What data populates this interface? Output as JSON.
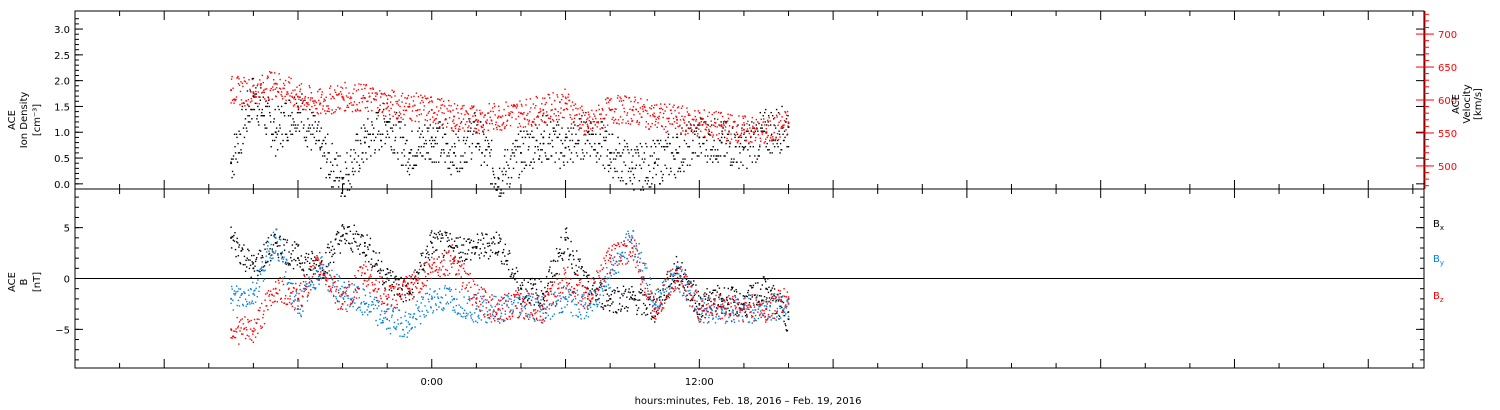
{
  "chart_data": [
    {
      "type": "scatter",
      "panel": "top",
      "ylabel_left": [
        "ACE",
        "Ion Density",
        "[cm⁻³]"
      ],
      "ylabel_right": [
        "ACE",
        "Velocity",
        "[km/s]"
      ],
      "ylim_left": [
        -0.1,
        3.35
      ],
      "ylim_right": [
        465,
        735
      ],
      "yticks_left": [
        0.0,
        0.5,
        1.0,
        1.5,
        2.0,
        2.5,
        3.0
      ],
      "yticks_left_labels": [
        "0.0",
        "0.5",
        "1.0",
        "1.5",
        "2.0",
        "2.5",
        "3.0"
      ],
      "yticks_right": [
        500,
        550,
        600,
        650,
        700
      ],
      "yticks_right_labels": [
        "500",
        "550",
        "600",
        "650",
        "700"
      ],
      "colors": {
        "density": "#000000",
        "velocity": "#ff0000",
        "right_axis": "#ff0000"
      },
      "series": [
        {
          "axis": "left",
          "x": [
            -9.0,
            -8.0,
            -7.0,
            -6.0,
            -5.0,
            -4.0,
            -3.0,
            -2.0,
            -1.0,
            0.0,
            1.0,
            2.0,
            3.0,
            4.0,
            5.0,
            6.0,
            7.0,
            8.0,
            9.0,
            10.0,
            11.0,
            12.0,
            13.0,
            14.0,
            15.0,
            16.0
          ],
          "y": [
            0.4,
            1.7,
            1.0,
            1.5,
            0.7,
            0.1,
            0.8,
            1.2,
            0.6,
            0.9,
            0.6,
            1.0,
            0.1,
            0.6,
            0.9,
            0.7,
            1.0,
            0.6,
            0.3,
            0.4,
            0.6,
            0.9,
            0.8,
            0.7,
            1.0,
            1.1
          ]
        },
        {
          "axis": "right",
          "x": [
            -9.0,
            -8.0,
            -7.0,
            -6.0,
            -5.0,
            -4.0,
            -3.0,
            -2.0,
            -1.0,
            0.0,
            1.0,
            2.0,
            3.0,
            4.0,
            5.0,
            6.0,
            7.0,
            8.0,
            9.0,
            10.0,
            11.0,
            12.0,
            13.0,
            14.0,
            15.0,
            16.0
          ],
          "y": [
            615,
            612,
            625,
            605,
            595,
            605,
            603,
            595,
            590,
            585,
            575,
            570,
            575,
            580,
            585,
            595,
            560,
            585,
            585,
            575,
            570,
            565,
            560,
            555,
            550,
            565
          ]
        }
      ]
    },
    {
      "type": "scatter",
      "panel": "bottom",
      "ylabel_left": [
        "ACE",
        "B",
        "[nT]"
      ],
      "ylim": [
        -8.8,
        8.8
      ],
      "yticks": [
        -5,
        0,
        5
      ],
      "yticks_labels": [
        "−5",
        "0",
        "5"
      ],
      "zero_line": true,
      "legend_position": "right",
      "series": [
        {
          "name": "B",
          "subscript": "x",
          "color": "#000000",
          "x": [
            -9.0,
            -8.0,
            -7.0,
            -6.0,
            -5.0,
            -4.0,
            -3.0,
            -2.0,
            -1.0,
            0.0,
            1.0,
            2.0,
            3.0,
            4.0,
            5.0,
            6.0,
            7.0,
            8.0,
            9.0,
            10.0,
            11.0,
            12.0,
            13.0,
            14.0,
            15.0,
            16.0
          ],
          "y": [
            4.0,
            1.0,
            3.5,
            2.0,
            1.0,
            4.2,
            3.5,
            0.0,
            -1.5,
            3.5,
            3.0,
            3.0,
            3.5,
            -1.0,
            -1.5,
            3.8,
            -1.0,
            -2.0,
            -2.0,
            -3.0,
            1.0,
            -2.5,
            -2.0,
            -2.5,
            -1.0,
            -4.0
          ]
        },
        {
          "name": "B",
          "subscript": "y",
          "color": "#0080e0",
          "x": [
            -9.0,
            -8.0,
            -7.0,
            -6.0,
            -5.0,
            -4.0,
            -3.0,
            -2.0,
            -1.0,
            0.0,
            1.0,
            2.0,
            3.0,
            4.0,
            5.0,
            6.0,
            7.0,
            8.0,
            9.0,
            10.0,
            11.0,
            12.0,
            13.0,
            14.0,
            15.0,
            16.0
          ],
          "y": [
            -2.0,
            -1.5,
            4.0,
            -3.0,
            1.0,
            -1.5,
            -2.5,
            -4.0,
            -4.5,
            -2.0,
            -2.0,
            -3.0,
            -3.0,
            -2.5,
            -3.0,
            -2.0,
            -3.0,
            0.5,
            4.0,
            -2.5,
            0.5,
            -3.0,
            -3.0,
            -3.0,
            -3.0,
            -2.5
          ]
        },
        {
          "name": "B",
          "subscript": "z",
          "color": "#ff0000",
          "x": [
            -9.0,
            -8.0,
            -7.0,
            -6.0,
            -5.0,
            -4.0,
            -3.0,
            -2.0,
            -1.0,
            0.0,
            1.0,
            2.0,
            3.0,
            4.0,
            5.0,
            6.0,
            7.0,
            8.0,
            9.0,
            10.0,
            11.0,
            12.0,
            13.0,
            14.0,
            15.0,
            16.0
          ],
          "y": [
            -5.0,
            -5.2,
            -1.0,
            -2.0,
            1.5,
            -2.5,
            0.5,
            -2.0,
            -1.0,
            1.0,
            2.0,
            -2.0,
            -3.0,
            -2.5,
            -3.0,
            0.0,
            -2.0,
            2.0,
            3.0,
            -3.0,
            0.5,
            -3.0,
            -2.8,
            -3.0,
            -3.0,
            -2.0
          ]
        }
      ]
    }
  ],
  "x_axis": {
    "xlabel": "hours:minutes, Feb. 18, 2016 – Feb. 19, 2016",
    "xlim": [
      -16.0,
      44.5
    ],
    "major_ticks": [
      0,
      12
    ],
    "major_tick_labels": [
      "0:00",
      "12:00"
    ],
    "minor_tick_step": 2
  },
  "icons": [
    "none"
  ]
}
